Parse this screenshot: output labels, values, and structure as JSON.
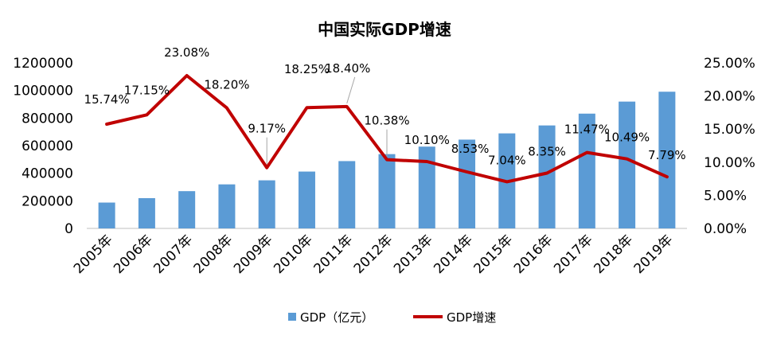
{
  "chart_data": {
    "type": "bar+line",
    "title": "中国实际GDP增速",
    "categories": [
      "2005年",
      "2006年",
      "2007年",
      "2008年",
      "2009年",
      "2010年",
      "2011年",
      "2012年",
      "2013年",
      "2014年",
      "2015年",
      "2016年",
      "2017年",
      "2018年",
      "2019年"
    ],
    "series": [
      {
        "name": "GDP（亿元）",
        "type": "bar",
        "axis": "left",
        "color": "#5B9BD5",
        "values": [
          187319,
          219439,
          270092,
          319245,
          348518,
          412119,
          487940,
          538580,
          592963,
          643563,
          688858,
          746395,
          832035,
          919281,
          990865
        ]
      },
      {
        "name": "GDP增速",
        "type": "line",
        "axis": "right",
        "color": "#C00000",
        "values": [
          15.74,
          17.15,
          23.08,
          18.2,
          9.17,
          18.25,
          18.4,
          10.38,
          10.1,
          8.53,
          7.04,
          8.35,
          11.47,
          10.49,
          7.79
        ],
        "labels": [
          "15.74%",
          "17.15%",
          "23.08%",
          "18.20%",
          "9.17%",
          "18.25%",
          "18.40%",
          "10.38%",
          "10.10%",
          "8.53%",
          "7.04%",
          "8.35%",
          "11.47%",
          "10.49%",
          "7.79%"
        ]
      }
    ],
    "left_axis": {
      "min": 0,
      "max": 1200000,
      "ticks": [
        "0",
        "200000",
        "400000",
        "600000",
        "800000",
        "1000000",
        "1200000"
      ]
    },
    "right_axis": {
      "min": 0,
      "max": 25,
      "ticks": [
        "0.00%",
        "5.00%",
        "10.00%",
        "15.00%",
        "20.00%",
        "25.00%"
      ]
    },
    "grid": false,
    "legend_position": "bottom"
  }
}
